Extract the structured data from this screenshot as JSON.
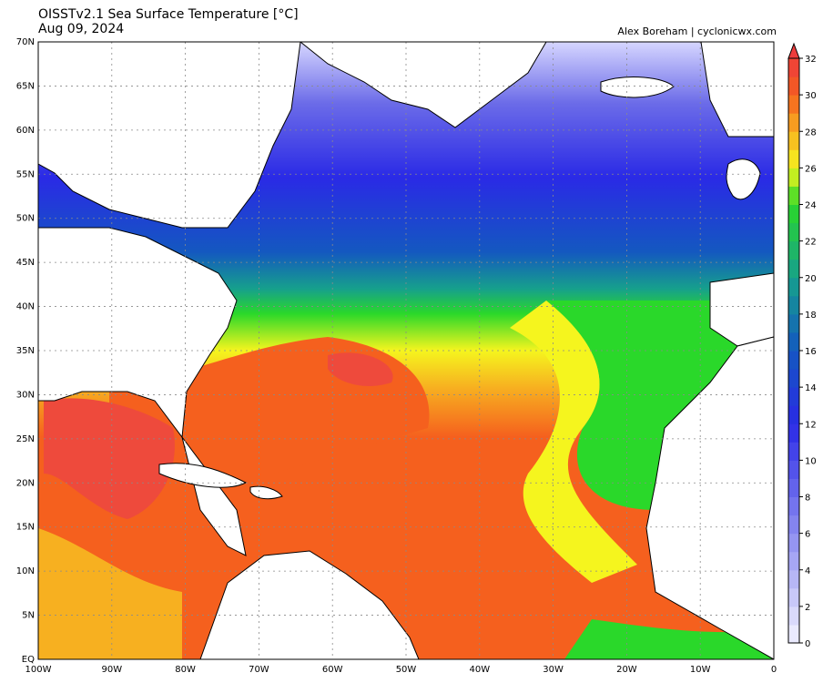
{
  "header": {
    "title": "OISSTv2.1 Sea Surface Temperature [°C]",
    "date": "Aug 09, 2024",
    "credit": "Alex Boreham | cyclonicwx.com"
  },
  "axes": {
    "lat_ticks": [
      "70N",
      "65N",
      "60N",
      "55N",
      "50N",
      "45N",
      "40N",
      "35N",
      "30N",
      "25N",
      "20N",
      "15N",
      "10N",
      "5N",
      "EQ"
    ],
    "lon_ticks": [
      "100W",
      "90W",
      "80W",
      "70W",
      "60W",
      "50W",
      "40W",
      "30W",
      "20W",
      "10W",
      "0"
    ]
  },
  "colorbar": {
    "unit": "°C",
    "ticks": [
      "32",
      "30",
      "28",
      "26",
      "24",
      "22",
      "20",
      "18",
      "16",
      "14",
      "12",
      "10",
      "8",
      "6",
      "4",
      "2",
      "0"
    ],
    "min": 0,
    "max": 32
  },
  "colors": {
    "land": "#ffffff",
    "coast": "#000000",
    "grid": "#8a8a8a",
    "sst_0": "#f2f2ff",
    "sst_6": "#8c8cf0",
    "sst_12": "#2a2ae6",
    "sst_16": "#1458c0",
    "sst_20": "#16a08c",
    "sst_24": "#2ad82a",
    "sst_26": "#f5f51e",
    "sst_28": "#f7b020",
    "sst_30": "#f5601e",
    "sst_32": "#ee3c3c"
  }
}
